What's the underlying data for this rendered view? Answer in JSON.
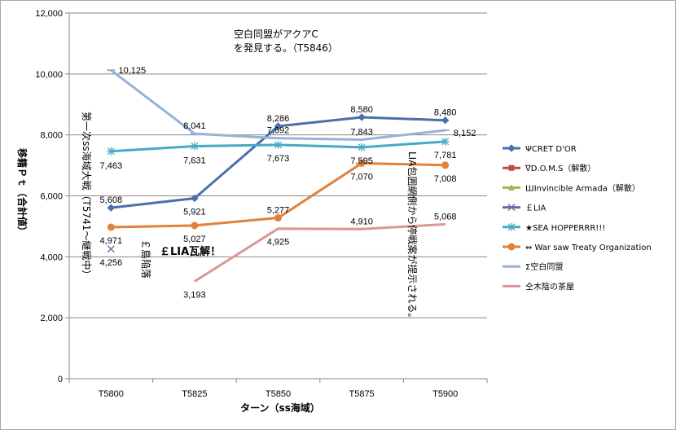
{
  "chart_data": {
    "type": "line",
    "title": "",
    "xlabel": "ターン（ss海域）",
    "ylabel": "移籍Ｐｔ（合計値）",
    "categories": [
      "T5800",
      "T5825",
      "T5850",
      "T5875",
      "T5900"
    ],
    "ylim": [
      0,
      12000
    ],
    "ytick_values": [
      0,
      2000,
      4000,
      6000,
      8000,
      10000,
      12000
    ],
    "ytick_labels": [
      "0",
      "2,000",
      "4,000",
      "6,000",
      "8,000",
      "10,000",
      "12,000"
    ],
    "grid": "horizontal",
    "legend_position": "right",
    "series": [
      {
        "name": "ΨCRET D'OR",
        "color": "#4a6fad",
        "marker": "diamond",
        "values": [
          5608,
          5921,
          8286,
          8580,
          8480
        ],
        "labels": [
          "5,608",
          "5,921",
          "8,286",
          "8,580",
          "8,480"
        ]
      },
      {
        "name": "∇D.O.M.S（解散）",
        "color": "#be4b48",
        "marker": "square",
        "values": [
          null,
          null,
          null,
          null,
          null
        ],
        "labels": []
      },
      {
        "name": "ШInvincible Armada（解散）",
        "color": "#98b954",
        "marker": "triangle",
        "values": [
          null,
          null,
          null,
          null,
          null
        ],
        "labels": []
      },
      {
        "name": "￡LIA",
        "color": "#7d60a0",
        "marker": "x",
        "values": [
          4256,
          null,
          null,
          null,
          null
        ],
        "labels": [
          "4,256",
          null,
          null,
          null,
          null
        ]
      },
      {
        "name": "★SEA HOPPERRR!!!",
        "color": "#46aac4",
        "marker": "star",
        "values": [
          7463,
          7631,
          7673,
          7595,
          7781
        ],
        "labels": [
          "7,463",
          "7,631",
          "7,673",
          "7,595",
          "7,781"
        ]
      },
      {
        "name": "⇔ War saw Treaty Organization",
        "color": "#e0823a",
        "marker": "circle",
        "values": [
          4971,
          5027,
          5277,
          7070,
          7008
        ],
        "labels": [
          "4,971",
          "5,027",
          "5,277",
          "7,070",
          "7,008"
        ]
      },
      {
        "name": "Σ空白同盟",
        "color": "#95b3d7",
        "marker": "dash",
        "values": [
          10125,
          8041,
          7892,
          7843,
          8152
        ],
        "labels": [
          "10,125",
          "8,041",
          "7,892",
          "7,843",
          "8,152"
        ]
      },
      {
        "name": "仝木陰の茶屋",
        "color": "#d99694",
        "marker": "none",
        "values": [
          null,
          3193,
          4925,
          4910,
          5068
        ],
        "labels": [
          null,
          "3,193",
          "4,925",
          "4,910",
          "5,068"
        ]
      }
    ],
    "annotations": [
      "空白同盟がアクアC",
      "を発見する。（T5846）",
      "第一次ss海域大戦（T5741～継戦中）",
      "￡島陥落",
      "￡LIA瓦解！",
      "LIA包囲網側から停戦案が提示される。"
    ]
  }
}
